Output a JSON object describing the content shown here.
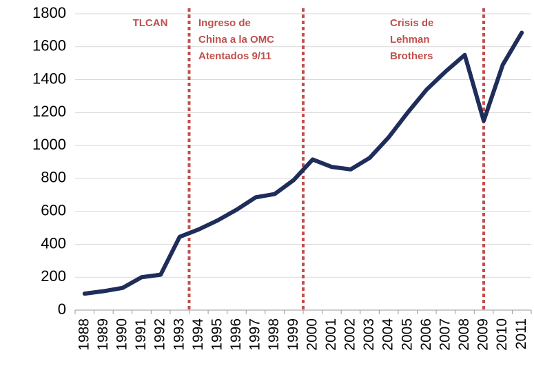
{
  "chart_data": {
    "type": "line",
    "categories": [
      "1988",
      "1989",
      "1990",
      "1991",
      "1992",
      "1993",
      "1994",
      "1995",
      "1996",
      "1997",
      "1998",
      "1999",
      "2000",
      "2001",
      "2002",
      "2003",
      "2004",
      "2005",
      "2006",
      "2007",
      "2008",
      "2009",
      "2010",
      "2011"
    ],
    "series": [
      {
        "color": "#1f2d5a",
        "values": [
          100,
          115,
          135,
          200,
          215,
          445,
          490,
          545,
          610,
          685,
          705,
          790,
          915,
          870,
          855,
          925,
          1050,
          1200,
          1340,
          1450,
          1550,
          1150,
          1490,
          1685
        ]
      }
    ],
    "ylim": [
      0,
      1800
    ],
    "yticks": [
      0,
      200,
      400,
      600,
      800,
      1000,
      1200,
      1400,
      1600,
      1800
    ],
    "grid": true,
    "annotations": [
      {
        "x": 1993.5,
        "label": [
          "TLCAN"
        ],
        "color": "#c0504d"
      },
      {
        "x": 1999.5,
        "label": [
          "Ingreso de",
          "China a la OMC",
          "Atentados 9/11"
        ],
        "color": "#c0504d"
      },
      {
        "x": 2009,
        "label": [
          "Crisis de",
          "Lehman",
          "Brothers"
        ],
        "color": "#c0504d"
      }
    ]
  }
}
